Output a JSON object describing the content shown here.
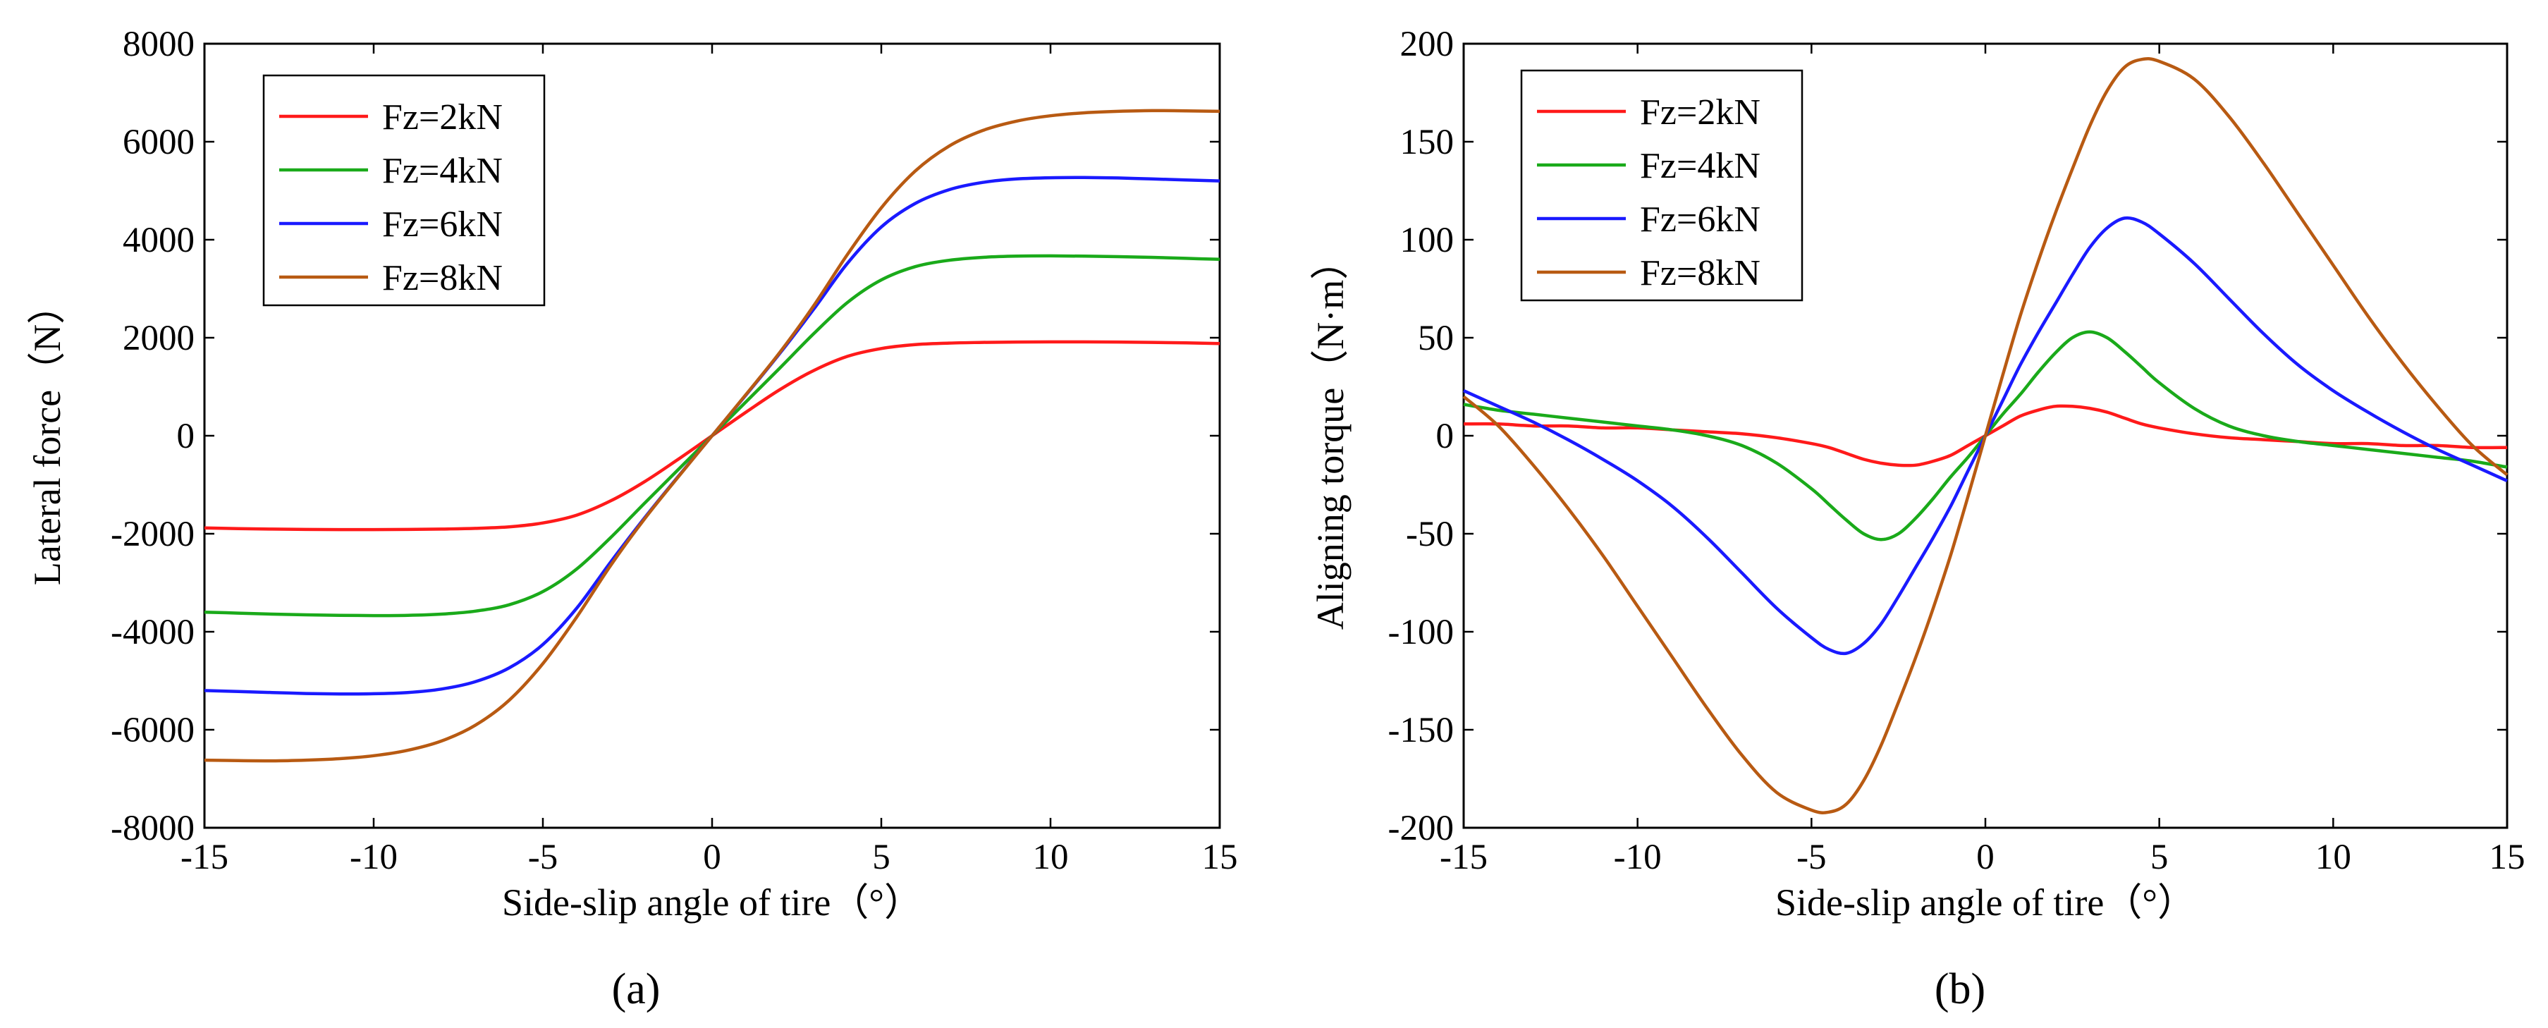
{
  "chart_data": [
    {
      "type": "line",
      "panel_label": "(a)",
      "xlabel": "Side-slip angle of tire（°）",
      "ylabel": "Lateral force（N）",
      "xlim": [
        -15,
        15
      ],
      "ylim": [
        -8000,
        8000
      ],
      "xticks": [
        -15,
        -10,
        -5,
        0,
        5,
        10,
        15
      ],
      "yticks": [
        -8000,
        -6000,
        -4000,
        -2000,
        0,
        2000,
        4000,
        6000,
        8000
      ],
      "legend_position": "top-left",
      "x": [
        -15,
        -14,
        -13,
        -12,
        -11,
        -10,
        -9,
        -8,
        -7,
        -6,
        -5,
        -4,
        -3,
        -2,
        -1,
        0,
        1,
        2,
        3,
        4,
        5,
        6,
        7,
        8,
        9,
        10,
        11,
        12,
        13,
        14,
        15
      ],
      "series": [
        {
          "name": "Fz=2kN",
          "color": "#ff1a1a",
          "values": [
            -1880,
            -1895,
            -1905,
            -1912,
            -1915,
            -1915,
            -1912,
            -1905,
            -1890,
            -1860,
            -1780,
            -1620,
            -1330,
            -940,
            -480,
            0,
            480,
            940,
            1330,
            1620,
            1780,
            1860,
            1890,
            1905,
            1912,
            1915,
            1915,
            1912,
            1905,
            1895,
            1880
          ]
        },
        {
          "name": "Fz=4kN",
          "color": "#1aaa1a",
          "values": [
            -3600,
            -3620,
            -3640,
            -3655,
            -3665,
            -3670,
            -3665,
            -3640,
            -3580,
            -3450,
            -3180,
            -2720,
            -2080,
            -1380,
            -690,
            0,
            690,
            1380,
            2080,
            2720,
            3180,
            3450,
            3580,
            3640,
            3665,
            3670,
            3665,
            3655,
            3640,
            3620,
            3600
          ]
        },
        {
          "name": "Fz=6kN",
          "color": "#1a1aff",
          "values": [
            -5200,
            -5220,
            -5240,
            -5260,
            -5270,
            -5265,
            -5240,
            -5170,
            -5020,
            -4740,
            -4260,
            -3520,
            -2580,
            -1680,
            -830,
            0,
            830,
            1680,
            2580,
            3520,
            4260,
            4740,
            5020,
            5170,
            5240,
            5265,
            5270,
            5260,
            5240,
            5220,
            5200
          ]
        },
        {
          "name": "Fz=8kN",
          "color": "#b85a12",
          "values": [
            -6620,
            -6630,
            -6635,
            -6620,
            -6590,
            -6530,
            -6420,
            -6230,
            -5910,
            -5400,
            -4650,
            -3700,
            -2650,
            -1700,
            -840,
            0,
            840,
            1700,
            2650,
            3700,
            4650,
            5400,
            5910,
            6230,
            6420,
            6530,
            6590,
            6620,
            6635,
            6630,
            6620
          ]
        }
      ]
    },
    {
      "type": "line",
      "panel_label": "(b)",
      "xlabel": "Side-slip angle of tire（°）",
      "ylabel": "Aligning torque（N·m）",
      "xlim": [
        -15,
        15
      ],
      "ylim": [
        -200,
        200
      ],
      "xticks": [
        -15,
        -10,
        -5,
        0,
        5,
        10,
        15
      ],
      "yticks": [
        -200,
        -150,
        -100,
        -50,
        0,
        50,
        100,
        150,
        200
      ],
      "legend_position": "top-left",
      "x": [
        -15,
        -14,
        -13,
        -12,
        -11,
        -10,
        -9,
        -8,
        -7,
        -6,
        -5,
        -4.5,
        -4,
        -3.5,
        -3,
        -2.5,
        -2,
        -1.5,
        -1,
        -0.5,
        0,
        0.5,
        1,
        1.5,
        2,
        2.5,
        3,
        3.5,
        4,
        4.5,
        5,
        6,
        7,
        8,
        9,
        10,
        11,
        12,
        13,
        14,
        15
      ],
      "series": [
        {
          "name": "Fz=2kN",
          "color": "#ff1a1a",
          "values": [
            6,
            6,
            5,
            5,
            4,
            4,
            3,
            2,
            1,
            -1,
            -4,
            -6,
            -9,
            -12,
            -14,
            -15,
            -15,
            -13,
            -10,
            -5,
            0,
            5,
            10,
            13,
            15,
            15,
            14,
            12,
            9,
            6,
            4,
            1,
            -1,
            -2,
            -3,
            -4,
            -4,
            -5,
            -5,
            -6,
            -6
          ]
        },
        {
          "name": "Fz=4kN",
          "color": "#1aaa1a",
          "values": [
            16,
            13,
            11,
            9,
            7,
            5,
            3,
            0,
            -5,
            -14,
            -27,
            -35,
            -43,
            -50,
            -53,
            -50,
            -42,
            -32,
            -21,
            -11,
            0,
            11,
            21,
            32,
            42,
            50,
            53,
            50,
            43,
            35,
            27,
            14,
            5,
            0,
            -3,
            -5,
            -7,
            -9,
            -11,
            -13,
            -16
          ]
        },
        {
          "name": "Fz=6kN",
          "color": "#1a1aff",
          "values": [
            23,
            15,
            7,
            -2,
            -12,
            -23,
            -36,
            -52,
            -70,
            -88,
            -103,
            -109,
            -111,
            -106,
            -96,
            -82,
            -67,
            -52,
            -36,
            -18,
            0,
            18,
            36,
            52,
            67,
            82,
            96,
            106,
            111,
            109,
            103,
            88,
            70,
            52,
            36,
            23,
            12,
            2,
            -7,
            -15,
            -23
          ]
        },
        {
          "name": "Fz=8kN",
          "color": "#b85a12",
          "values": [
            20,
            5,
            -15,
            -37,
            -61,
            -87,
            -113,
            -139,
            -163,
            -182,
            -191,
            -192,
            -188,
            -176,
            -158,
            -136,
            -113,
            -88,
            -61,
            -31,
            0,
            31,
            61,
            88,
            113,
            136,
            158,
            176,
            188,
            192,
            191,
            182,
            163,
            139,
            113,
            87,
            61,
            37,
            15,
            -5,
            -20
          ]
        }
      ]
    }
  ]
}
